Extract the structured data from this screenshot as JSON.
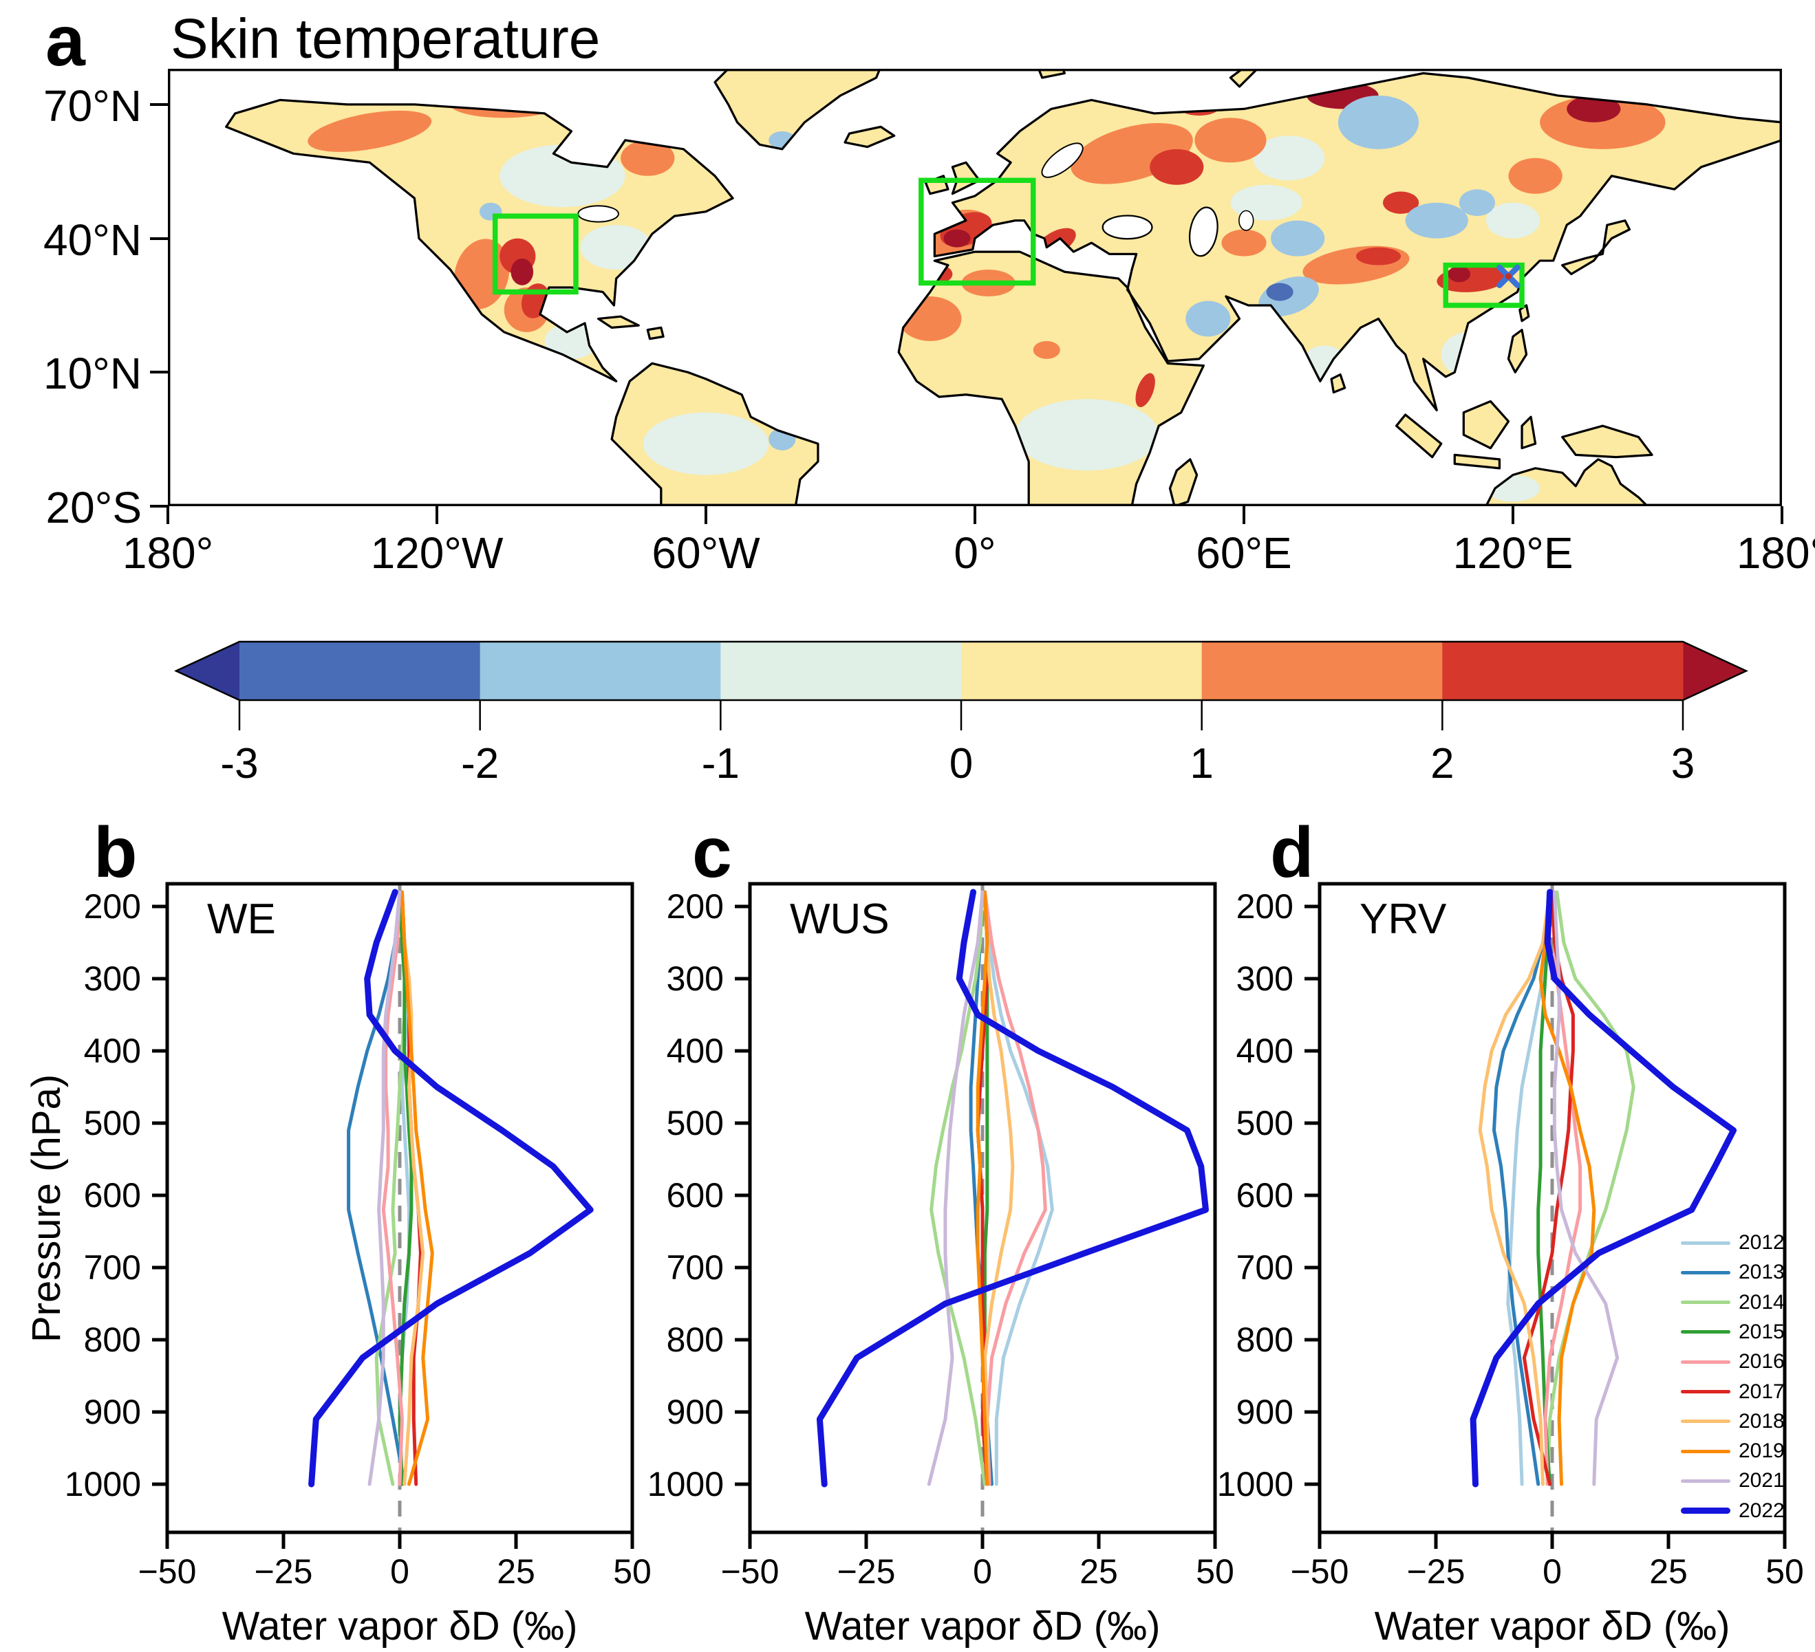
{
  "panel_a": {
    "letter": "a",
    "title": "Skin temperature",
    "lat_ticks": [
      {
        "label": "70°N",
        "lat": 70
      },
      {
        "label": "40°N",
        "lat": 40
      },
      {
        "label": "10°N",
        "lat": 10
      },
      {
        "label": "20°S",
        "lat": -20
      }
    ],
    "lon_ticks": [
      {
        "label": "180°",
        "lon": -180
      },
      {
        "label": "120°W",
        "lon": -120
      },
      {
        "label": "60°W",
        "lon": -60
      },
      {
        "label": "0°",
        "lon": 0
      },
      {
        "label": "60°E",
        "lon": 60
      },
      {
        "label": "120°E",
        "lon": 120
      },
      {
        "label": "180°",
        "lon": 180
      }
    ],
    "regions": [
      {
        "name": "WUS",
        "lon": [
          -107,
          -89
        ],
        "lat": [
          28,
          45
        ]
      },
      {
        "name": "WE",
        "lon": [
          -12,
          13
        ],
        "lat": [
          30,
          53
        ]
      },
      {
        "name": "YRV",
        "lon": [
          105,
          122
        ],
        "lat": [
          25,
          34
        ],
        "marker": {
          "lon": 119,
          "lat": 31.5
        }
      }
    ],
    "region_box_color": "#17dd1b",
    "marker_color": "#3b72d8",
    "colorbar": {
      "tick_labels": [
        "-3",
        "-2",
        "-1",
        "0",
        "1",
        "2",
        "3"
      ],
      "segment_colors": [
        "#4a6db8",
        "#9ac8e2",
        "#e1f0e7",
        "#fce9a2",
        "#f5854e",
        "#d6392c"
      ],
      "left_arrow_color": "#333a96",
      "right_arrow_color": "#a31429"
    }
  },
  "profile_panels": {
    "ylabel": "Pressure (hPa)",
    "xlabel": "Water vapor δD (‰)",
    "x_tick_labels": [
      "−50",
      "−25",
      "0",
      "25",
      "50"
    ],
    "x_tick_values": [
      -50,
      -25,
      0,
      25,
      50
    ],
    "y_tick_values": [
      200,
      300,
      400,
      500,
      600,
      700,
      800,
      900,
      1000
    ],
    "zero_line_color": "#909090"
  },
  "chart_data": [
    {
      "type": "heatmap",
      "panel": "a",
      "title": "Skin temperature",
      "colorbar_ticks": [
        -3,
        -2,
        -1,
        0,
        1,
        2,
        3
      ],
      "lon_range": [
        -180,
        180
      ],
      "lat_range": [
        -20,
        78
      ],
      "highlight_regions": [
        "WUS",
        "WE",
        "YRV"
      ]
    },
    {
      "type": "line",
      "panel": "b",
      "region": "WE",
      "xlabel": "Water vapor δD (‰)",
      "ylabel": "Pressure (hPa)",
      "xlim": [
        -50,
        50
      ],
      "ylim_pressure": [
        1066,
        168
      ],
      "pressure_levels": [
        180,
        250,
        300,
        350,
        400,
        450,
        510,
        560,
        620,
        680,
        750,
        825,
        910,
        1000
      ],
      "series": [
        {
          "name": "2012",
          "color": "#a8cee3",
          "width": 5,
          "values": [
            0.5,
            1,
            1.5,
            1.5,
            1,
            0.5,
            1,
            1.5,
            2,
            2,
            1.5,
            0.5,
            0,
            0.5
          ]
        },
        {
          "name": "2013",
          "color": "#2e7fb9",
          "width": 5,
          "values": [
            0,
            -1,
            -2.5,
            -4.5,
            -7,
            -9,
            -11,
            -11,
            -11,
            -9,
            -6.5,
            -4,
            -1.5,
            1
          ]
        },
        {
          "name": "2014",
          "color": "#a3d98b",
          "width": 5,
          "values": [
            0.5,
            1,
            1.5,
            1,
            0.5,
            0,
            -0.5,
            -1,
            -1.5,
            -1,
            -3,
            -5,
            -4.5,
            -1.5
          ]
        },
        {
          "name": "2015",
          "color": "#2f9e33",
          "width": 5,
          "values": [
            0,
            0.5,
            1,
            1,
            1,
            1.5,
            2,
            2.5,
            2.5,
            2,
            1,
            0.5,
            0,
            0.5
          ]
        },
        {
          "name": "2016",
          "color": "#f99da2",
          "width": 5,
          "values": [
            0,
            -0.5,
            -1.5,
            -2.5,
            -3,
            -3,
            -2.5,
            -2.5,
            -3.5,
            -2.5,
            -1.5,
            -0.5,
            0.5,
            0
          ]
        },
        {
          "name": "2017",
          "color": "#dc2420",
          "width": 5,
          "values": [
            0.5,
            1,
            1.5,
            2,
            2,
            2,
            2.5,
            3,
            4,
            4.5,
            4,
            3,
            3,
            3.5
          ]
        },
        {
          "name": "2018",
          "color": "#fcc06f",
          "width": 5,
          "values": [
            0.5,
            1,
            2,
            2.5,
            2.5,
            2,
            2.5,
            3,
            4,
            5,
            4,
            2.5,
            2,
            1
          ]
        },
        {
          "name": "2019",
          "color": "#fb8b04",
          "width": 5,
          "values": [
            0.5,
            1,
            1.5,
            2,
            2.5,
            3,
            3.5,
            4.5,
            5.5,
            7,
            6,
            5,
            6,
            2
          ]
        },
        {
          "name": "2021",
          "color": "#c9b8d9",
          "width": 5,
          "values": [
            0,
            -1,
            -2,
            -3,
            -3.5,
            -3.5,
            -3.5,
            -4,
            -4.5,
            -4,
            -3.5,
            -3.5,
            -4.5,
            -6.5
          ]
        },
        {
          "name": "2022",
          "color": "#1414dd",
          "width": 9,
          "values": [
            -1,
            -5,
            -7,
            -6.5,
            -1,
            8,
            22,
            33,
            41,
            28,
            8,
            -8,
            -18,
            -19
          ]
        }
      ]
    },
    {
      "type": "line",
      "panel": "c",
      "region": "WUS",
      "xlabel": "Water vapor δD (‰)",
      "ylabel": "Pressure (hPa)",
      "xlim": [
        -50,
        50
      ],
      "ylim_pressure": [
        1066,
        168
      ],
      "pressure_levels": [
        180,
        250,
        300,
        350,
        400,
        450,
        510,
        560,
        620,
        680,
        750,
        825,
        910,
        1000
      ],
      "series": [
        {
          "name": "2012",
          "color": "#a8cee3",
          "width": 5,
          "values": [
            0.5,
            1.5,
            2.5,
            4,
            6,
            9,
            12,
            14,
            15,
            12,
            8,
            4.5,
            3,
            3
          ]
        },
        {
          "name": "2013",
          "color": "#2e7fb9",
          "width": 5,
          "values": [
            0,
            -0.5,
            -1,
            -1.5,
            -2,
            -2.5,
            -2.5,
            -2,
            -1.5,
            -1,
            0,
            0.5,
            1,
            2
          ]
        },
        {
          "name": "2014",
          "color": "#a3d98b",
          "width": 5,
          "values": [
            0,
            -0.5,
            -1.5,
            -3,
            -4.5,
            -6.5,
            -8.5,
            -10,
            -11,
            -9.5,
            -7,
            -4,
            -1.5,
            0.5
          ]
        },
        {
          "name": "2015",
          "color": "#2f9e33",
          "width": 5,
          "values": [
            0.5,
            1,
            1,
            1,
            1,
            1,
            1,
            1,
            1,
            0.5,
            0.5,
            0.5,
            0.5,
            1
          ]
        },
        {
          "name": "2016",
          "color": "#f99da2",
          "width": 5,
          "values": [
            0.5,
            2,
            3.5,
            5.5,
            8,
            10,
            12,
            13,
            13.5,
            9,
            5,
            2,
            1,
            1.5
          ]
        },
        {
          "name": "2017",
          "color": "#dc2420",
          "width": 5,
          "values": [
            0.5,
            1,
            1,
            0.5,
            0,
            -0.5,
            -1,
            -0.5,
            0,
            0,
            0,
            0.5,
            0,
            1
          ]
        },
        {
          "name": "2018",
          "color": "#fcc06f",
          "width": 5,
          "values": [
            0.5,
            1,
            1.5,
            2.5,
            4,
            5,
            6,
            6.5,
            6,
            4,
            2,
            0.5,
            1,
            1
          ]
        },
        {
          "name": "2019",
          "color": "#fb8b04",
          "width": 5,
          "values": [
            0.5,
            1,
            0.5,
            0,
            -0.5,
            -1,
            -1,
            -0.5,
            -1,
            -1,
            -0.5,
            0,
            0.5,
            1
          ]
        },
        {
          "name": "2021",
          "color": "#c9b8d9",
          "width": 5,
          "values": [
            0,
            -1,
            -2.5,
            -4,
            -5,
            -6,
            -7,
            -7.5,
            -8,
            -8,
            -7.5,
            -6.5,
            -8,
            -11.5
          ]
        },
        {
          "name": "2022",
          "color": "#1414dd",
          "width": 9,
          "values": [
            -2,
            -4,
            -5,
            -1,
            12,
            28,
            44,
            47,
            48,
            22,
            -8,
            -27,
            -35,
            -34
          ]
        }
      ]
    },
    {
      "type": "line",
      "panel": "d",
      "region": "YRV",
      "xlabel": "Water vapor δD (‰)",
      "ylabel": "Pressure (hPa)",
      "xlim": [
        -50,
        50
      ],
      "ylim_pressure": [
        1066,
        168
      ],
      "pressure_levels": [
        180,
        250,
        300,
        350,
        400,
        450,
        510,
        560,
        620,
        680,
        750,
        825,
        910,
        1000
      ],
      "legend_position": "lower right",
      "series": [
        {
          "name": "2012",
          "color": "#a8cee3",
          "width": 5,
          "values": [
            0,
            -1,
            -2,
            -3.5,
            -5,
            -6.5,
            -7.5,
            -8,
            -8.5,
            -9,
            -9.5,
            -8,
            -7,
            -6.5
          ]
        },
        {
          "name": "2013",
          "color": "#2e7fb9",
          "width": 5,
          "values": [
            -0.5,
            -2,
            -4,
            -7.5,
            -10.5,
            -12,
            -12.5,
            -11,
            -10,
            -9.5,
            -8.5,
            -7,
            -5,
            -3
          ]
        },
        {
          "name": "2014",
          "color": "#a3d98b",
          "width": 5,
          "values": [
            1,
            2.5,
            5,
            11,
            16,
            17.5,
            16,
            14,
            11.5,
            8,
            4.5,
            1.5,
            -0.5,
            -1
          ]
        },
        {
          "name": "2015",
          "color": "#2f9e33",
          "width": 5,
          "values": [
            -0.5,
            -1,
            -1.5,
            -2,
            -2.5,
            -2.5,
            -2.5,
            -2.5,
            -3,
            -3,
            -2.5,
            -2,
            -1.5,
            -0.5
          ]
        },
        {
          "name": "2016",
          "color": "#f99da2",
          "width": 5,
          "values": [
            0,
            0.5,
            1,
            2,
            3,
            4,
            5,
            6,
            6,
            4,
            2,
            -0.5,
            -1.5,
            -1
          ]
        },
        {
          "name": "2017",
          "color": "#dc2420",
          "width": 5,
          "values": [
            0,
            0.5,
            2,
            4.5,
            4.5,
            4,
            3.5,
            2.5,
            1,
            0,
            -2.5,
            -6,
            -4,
            -0.5
          ]
        },
        {
          "name": "2018",
          "color": "#fcc06f",
          "width": 5,
          "values": [
            -0.5,
            -2,
            -5,
            -10,
            -13,
            -14.5,
            -15.5,
            -14,
            -13,
            -10.5,
            -6,
            -4,
            -2.5,
            -2
          ]
        },
        {
          "name": "2019",
          "color": "#fb8b04",
          "width": 5,
          "values": [
            -0.5,
            -1.5,
            -2.5,
            -1.5,
            1.5,
            4,
            6,
            8,
            9,
            8.5,
            4.5,
            2,
            1.5,
            2
          ]
        },
        {
          "name": "2021",
          "color": "#c9b8d9",
          "width": 5,
          "values": [
            0.5,
            1,
            1.5,
            1.5,
            1,
            0.5,
            0.5,
            1,
            2,
            5,
            11.5,
            14,
            9.5,
            9
          ]
        },
        {
          "name": "2022",
          "color": "#1414dd",
          "width": 9,
          "values": [
            -0.5,
            -1,
            0.5,
            8,
            17,
            26,
            39,
            35,
            30,
            10,
            -3,
            -12,
            -17,
            -16.5
          ]
        }
      ]
    }
  ],
  "panel_letters": {
    "b": "b",
    "c": "c",
    "d": "d"
  }
}
